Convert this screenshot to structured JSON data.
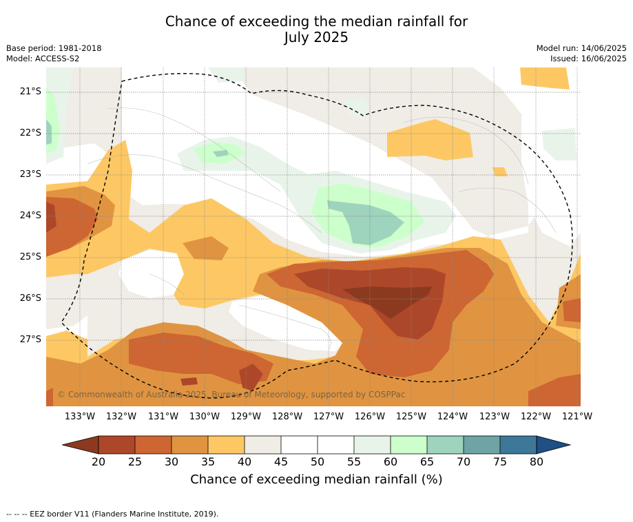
{
  "title_line1": "Chance of exceeding the median rainfall for",
  "title_line2": "July 2025",
  "base_period": "Base period: 1981-2018",
  "model": "Model: ACCESS-S2",
  "model_run": "Model run: 14/06/2025",
  "issued": "Issued: 16/06/2025",
  "copyright": "© Commonwealth of Australia 2025, Bureau of Meteorology, supported by COSPPac",
  "lon_labels": [
    "133°W",
    "132°W",
    "131°W",
    "130°W",
    "129°W",
    "128°W",
    "127°W",
    "126°W",
    "125°W",
    "124°W",
    "123°W",
    "122°W",
    "121°W"
  ],
  "lat_labels": [
    "21°S",
    "22°S",
    "23°S",
    "24°S",
    "25°S",
    "26°S",
    "27°S"
  ],
  "colorbar": {
    "ticks": [
      "20",
      "25",
      "30",
      "35",
      "40",
      "45",
      "50",
      "55",
      "60",
      "65",
      "70",
      "75",
      "80"
    ],
    "label": "Chance of exceeding median rainfall (%)",
    "colors": {
      "below20": "#8b3a1f",
      "20-25": "#ad4729",
      "25-30": "#cd6632",
      "30-35": "#e09441",
      "35-40": "#fdc864",
      "40-45": "#f0ece6",
      "45-50": "#ffffff",
      "50-55": "#ffffff",
      "55-60": "#e8f4e9",
      "60-65": "#ccffcc",
      "65-70": "#9ed3bd",
      "70-75": "#6fa3a5",
      "75-80": "#3d7898",
      "above80": "#1f4f85"
    }
  },
  "footnote": "--  --  -- EEZ border V11 (Flanders Marine Institute, 2019)."
}
